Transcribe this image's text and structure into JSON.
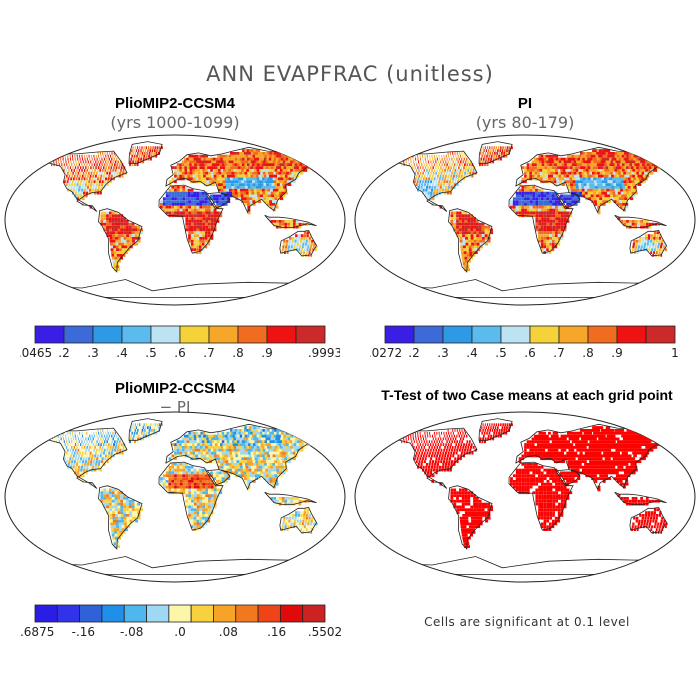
{
  "title": "ANN EVAPFRAC (unitless)",
  "colors": {
    "ocean": "#ffffff",
    "outline": "#222222",
    "significant": "#ff0000"
  },
  "panels": [
    {
      "id": "tl",
      "title": "PlioMIP2-CCSM4",
      "subtitle": "(yrs 1000-1099)",
      "kind": "field"
    },
    {
      "id": "tr",
      "title": "PI",
      "subtitle": "(yrs 80-179)",
      "kind": "field"
    },
    {
      "id": "bl",
      "title": "PlioMIP2-CCSM4",
      "subtitle": "− PI",
      "kind": "diff"
    },
    {
      "id": "br",
      "title": "T-Test of two Case means at each grid point",
      "subtitle": "",
      "kind": "ttest"
    }
  ],
  "colorbars": [
    {
      "id": "cb1",
      "colors": [
        "#3a1ee6",
        "#3c6ad8",
        "#2e9ae6",
        "#5cbbee",
        "#bde3f3",
        "#f5d13a",
        "#f6a72a",
        "#f06c1f",
        "#ee1212",
        "#cc2a2a"
      ],
      "labels": [
        ".0465",
        ".2",
        ".3",
        ".4",
        ".5",
        ".6",
        ".7",
        ".8",
        ".9",
        ".9993"
      ]
    },
    {
      "id": "cb2",
      "colors": [
        "#3a1ee6",
        "#3c6ad8",
        "#2e9ae6",
        "#5cbbee",
        "#bde3f3",
        "#f5d13a",
        "#f6a72a",
        "#f06c1f",
        "#ee1212",
        "#cc2a2a"
      ],
      "labels": [
        ".0272",
        ".2",
        ".3",
        ".4",
        ".5",
        ".6",
        ".7",
        ".8",
        ".9",
        "1"
      ]
    },
    {
      "id": "cb3",
      "colors": [
        "#2a1ee6",
        "#3232e8",
        "#2f62d8",
        "#1f8fea",
        "#4fb6ee",
        "#9ed8f2",
        "#fdf6a6",
        "#f8d23e",
        "#f6a32a",
        "#f2781e",
        "#ee4418",
        "#e00a0a",
        "#cc2222"
      ],
      "labels": [
        "-.6875",
        "-.16",
        "-.08",
        ".0",
        ".08",
        ".16",
        ".5502"
      ]
    }
  ],
  "note": "Cells are significant at 0.1 level"
}
